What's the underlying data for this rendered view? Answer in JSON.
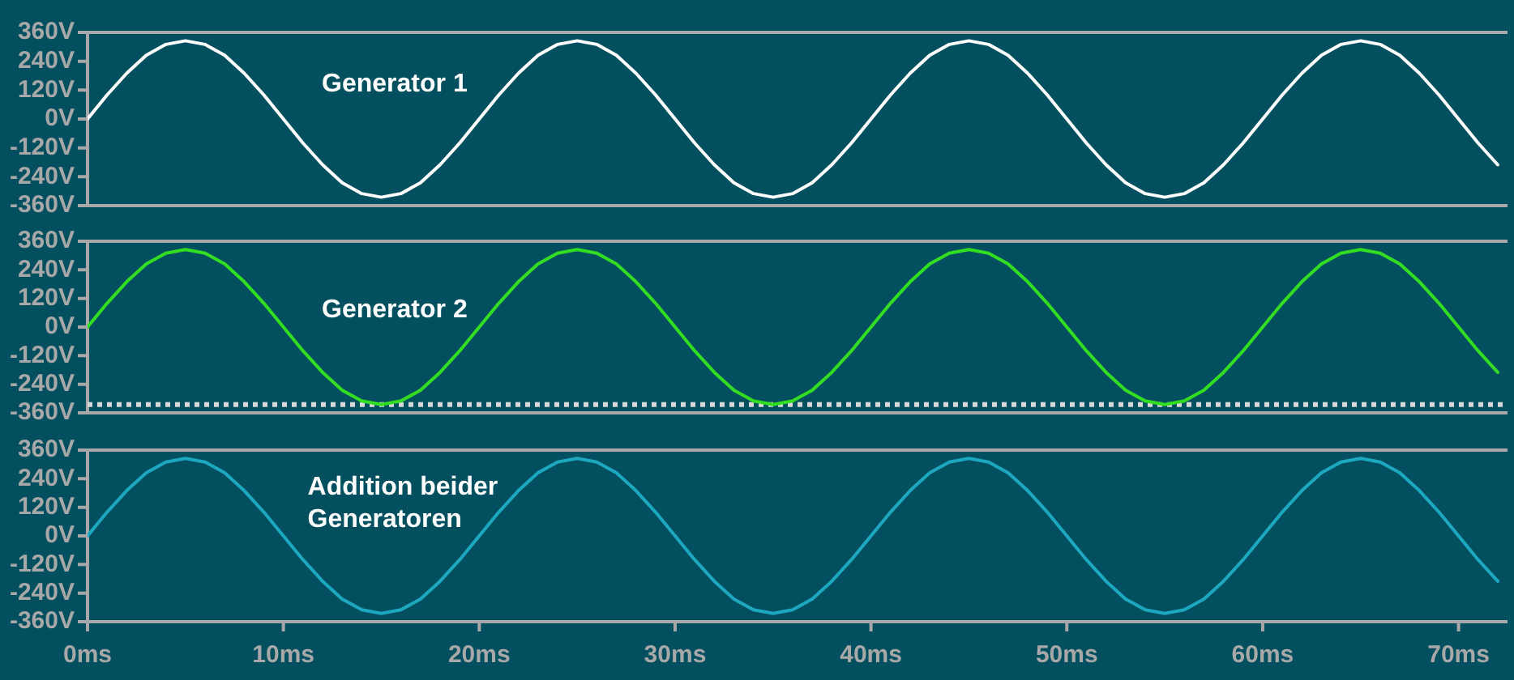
{
  "chart_data": [
    {
      "type": "line",
      "annotations": [
        "Generator 1"
      ],
      "tick_labels": "y",
      "grid": false,
      "legend": false,
      "marker": "none",
      "line_style": "solid",
      "x": [
        0,
        1,
        2,
        3,
        4,
        5,
        6,
        7,
        8,
        9,
        10,
        11,
        12,
        13,
        14,
        15,
        16,
        17,
        18,
        19,
        20,
        21,
        22,
        23,
        24,
        25,
        26,
        27,
        28,
        29,
        30,
        31,
        32,
        33,
        34,
        35,
        36,
        37,
        38,
        39,
        40,
        41,
        42,
        43,
        44,
        45,
        46,
        47,
        48,
        49,
        50,
        51,
        52,
        53,
        54,
        55,
        56,
        57,
        58,
        59,
        60,
        61,
        62,
        63,
        64,
        65,
        66,
        67,
        68,
        69,
        70,
        71,
        72
      ],
      "series": [
        {
          "color": "#ffffff",
          "values": [
            0,
            100,
            190,
            265,
            310,
            325,
            310,
            265,
            190,
            100,
            0,
            -100,
            -190,
            -265,
            -310,
            -325,
            -310,
            -265,
            -190,
            -100,
            0,
            100,
            190,
            265,
            310,
            325,
            310,
            265,
            190,
            100,
            0,
            -100,
            -190,
            -265,
            -310,
            -325,
            -310,
            -265,
            -190,
            -100,
            0,
            100,
            190,
            265,
            310,
            325,
            310,
            265,
            190,
            100,
            0,
            -100,
            -190,
            -265,
            -310,
            -325,
            -310,
            -265,
            -190,
            -100,
            0,
            100,
            190,
            265,
            310,
            325,
            310,
            265,
            190,
            100,
            0,
            -100,
            -190
          ]
        }
      ],
      "xlim": [
        0,
        72.5
      ],
      "ylim": [
        -360,
        360
      ],
      "yticks": [
        {
          "value": -360,
          "label": "-360V"
        },
        {
          "value": -240,
          "label": "-240V"
        },
        {
          "value": -120,
          "label": "-120V"
        },
        {
          "value": 0,
          "label": "0V"
        },
        {
          "value": 120,
          "label": "120V"
        },
        {
          "value": 240,
          "label": "240V"
        },
        {
          "value": 360,
          "label": "360V"
        }
      ]
    },
    {
      "type": "line",
      "annotations": [
        "Generator 2"
      ],
      "tick_labels": "y",
      "grid": false,
      "legend": false,
      "marker": "none",
      "line_style": "solid",
      "x": [
        0,
        1,
        2,
        3,
        4,
        5,
        6,
        7,
        8,
        9,
        10,
        11,
        12,
        13,
        14,
        15,
        16,
        17,
        18,
        19,
        20,
        21,
        22,
        23,
        24,
        25,
        26,
        27,
        28,
        29,
        30,
        31,
        32,
        33,
        34,
        35,
        36,
        37,
        38,
        39,
        40,
        41,
        42,
        43,
        44,
        45,
        46,
        47,
        48,
        49,
        50,
        51,
        52,
        53,
        54,
        55,
        56,
        57,
        58,
        59,
        60,
        61,
        62,
        63,
        64,
        65,
        66,
        67,
        68,
        69,
        70,
        71,
        72
      ],
      "series": [
        {
          "color": "#33dd22",
          "values": [
            0,
            100,
            190,
            265,
            310,
            325,
            310,
            265,
            190,
            100,
            0,
            -100,
            -190,
            -265,
            -310,
            -325,
            -310,
            -265,
            -190,
            -100,
            0,
            100,
            190,
            265,
            310,
            325,
            310,
            265,
            190,
            100,
            0,
            -100,
            -190,
            -265,
            -310,
            -325,
            -310,
            -265,
            -190,
            -100,
            0,
            100,
            190,
            265,
            310,
            325,
            310,
            265,
            190,
            100,
            0,
            -100,
            -190,
            -265,
            -310,
            -325,
            -310,
            -265,
            -190,
            -100,
            0,
            100,
            190,
            265,
            310,
            325,
            310,
            265,
            190,
            100,
            0,
            -100,
            -190
          ]
        }
      ],
      "ref_lines": [
        {
          "axis": "y",
          "value": -325,
          "color": "#d8d8d8",
          "line_style": "dotted"
        }
      ],
      "xlim": [
        0,
        72.5
      ],
      "ylim": [
        -360,
        360
      ],
      "yticks": [
        {
          "value": -360,
          "label": "-360V"
        },
        {
          "value": -240,
          "label": "-240V"
        },
        {
          "value": -120,
          "label": "-120V"
        },
        {
          "value": 0,
          "label": "0V"
        },
        {
          "value": 120,
          "label": "120V"
        },
        {
          "value": 240,
          "label": "240V"
        },
        {
          "value": 360,
          "label": "360V"
        }
      ]
    },
    {
      "type": "line",
      "annotations": [
        "Addition beider Generatoren"
      ],
      "grid": false,
      "legend": false,
      "marker": "none",
      "line_style": "solid",
      "x": [
        0,
        1,
        2,
        3,
        4,
        5,
        6,
        7,
        8,
        9,
        10,
        11,
        12,
        13,
        14,
        15,
        16,
        17,
        18,
        19,
        20,
        21,
        22,
        23,
        24,
        25,
        26,
        27,
        28,
        29,
        30,
        31,
        32,
        33,
        34,
        35,
        36,
        37,
        38,
        39,
        40,
        41,
        42,
        43,
        44,
        45,
        46,
        47,
        48,
        49,
        50,
        51,
        52,
        53,
        54,
        55,
        56,
        57,
        58,
        59,
        60,
        61,
        62,
        63,
        64,
        65,
        66,
        67,
        68,
        69,
        70,
        71,
        72
      ],
      "series": [
        {
          "color": "#1ea8c0",
          "values": [
            0,
            100,
            190,
            265,
            310,
            325,
            310,
            265,
            190,
            100,
            0,
            -100,
            -190,
            -265,
            -310,
            -325,
            -310,
            -265,
            -190,
            -100,
            0,
            100,
            190,
            265,
            310,
            325,
            310,
            265,
            190,
            100,
            0,
            -100,
            -190,
            -265,
            -310,
            -325,
            -310,
            -265,
            -190,
            -100,
            0,
            100,
            190,
            265,
            310,
            325,
            310,
            265,
            190,
            100,
            0,
            -100,
            -190,
            -265,
            -310,
            -325,
            -310,
            -265,
            -190,
            -100,
            0,
            100,
            190,
            265,
            310,
            325,
            310,
            265,
            190,
            100,
            0,
            -100,
            -190
          ]
        }
      ],
      "xlim": [
        0,
        72.5
      ],
      "xticks": [
        {
          "value": 0,
          "label": "0ms"
        },
        {
          "value": 10,
          "label": "10ms"
        },
        {
          "value": 20,
          "label": "20ms"
        },
        {
          "value": 30,
          "label": "30ms"
        },
        {
          "value": 40,
          "label": "40ms"
        },
        {
          "value": 50,
          "label": "50ms"
        },
        {
          "value": 60,
          "label": "60ms"
        },
        {
          "value": 70,
          "label": "70ms"
        }
      ],
      "ylim": [
        -360,
        360
      ],
      "yticks": [
        {
          "value": -360,
          "label": "-360V"
        },
        {
          "value": -240,
          "label": "-240V"
        },
        {
          "value": -120,
          "label": "-120V"
        },
        {
          "value": 0,
          "label": "0V"
        },
        {
          "value": 120,
          "label": "120V"
        },
        {
          "value": 240,
          "label": "240V"
        },
        {
          "value": 360,
          "label": "360V"
        }
      ]
    }
  ]
}
